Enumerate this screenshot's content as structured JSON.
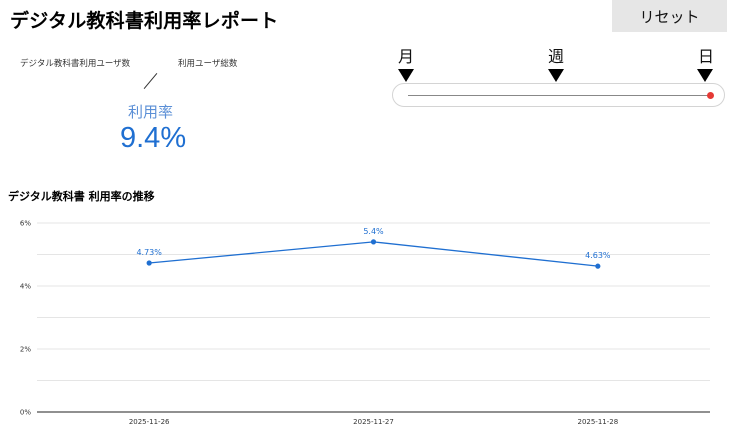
{
  "header": {
    "title": "デジタル教科書利用率レポート",
    "reset_label": "リセット"
  },
  "kpi": {
    "numerator_label": "デジタル教科書利用ユーザ数",
    "denominator_label": "利用ユーザ総数",
    "rate_label": "利用率",
    "rate_value": "9.4%"
  },
  "period_selector": {
    "labels": [
      "月",
      "週",
      "日"
    ],
    "selected": "日",
    "position_fraction": 1.0,
    "accent": "#e53935"
  },
  "colors": {
    "primary": "#1f6fd1",
    "rate_label": "#5b8fd6"
  },
  "chart_data": {
    "type": "line",
    "title": "デジタル教科書 利用率の推移",
    "categories": [
      "2025-11-26",
      "2025-11-27",
      "2025-11-28"
    ],
    "values": [
      4.73,
      5.4,
      4.63
    ],
    "data_labels": [
      "4.73%",
      "5.4%",
      "4.63%"
    ],
    "yticks": [
      0,
      2,
      4,
      6
    ],
    "ytick_labels": [
      "0%",
      "2%",
      "4%",
      "6%"
    ],
    "ylim": [
      0,
      6
    ],
    "grid": true,
    "color": "#1f6fd1"
  }
}
